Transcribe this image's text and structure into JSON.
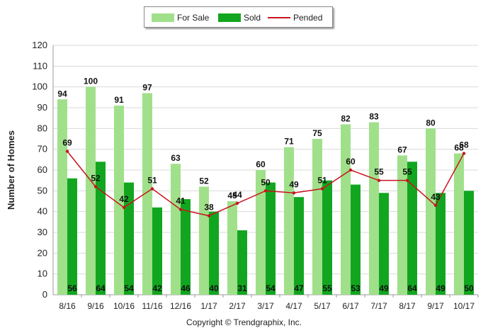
{
  "chart_data": {
    "type": "bar",
    "title": "",
    "xlabel": "",
    "ylabel": "Number of Homes",
    "ylim": [
      0,
      120
    ],
    "yticks": [
      0,
      10,
      20,
      30,
      40,
      50,
      60,
      70,
      80,
      90,
      100,
      110,
      120
    ],
    "grid": true,
    "legend_position": "top-center",
    "categories": [
      "8/16",
      "9/16",
      "10/16",
      "11/16",
      "12/16",
      "1/17",
      "2/17",
      "3/17",
      "4/17",
      "5/17",
      "6/17",
      "7/17",
      "8/17",
      "9/17",
      "10/17"
    ],
    "series": [
      {
        "name": "For Sale",
        "kind": "bar",
        "color": "#a0e08a",
        "values": [
          94,
          100,
          91,
          97,
          63,
          52,
          45,
          60,
          71,
          75,
          82,
          83,
          67,
          80,
          68
        ]
      },
      {
        "name": "Sold",
        "kind": "bar",
        "color": "#12a620",
        "values": [
          56,
          64,
          54,
          42,
          46,
          40,
          31,
          54,
          47,
          55,
          53,
          49,
          64,
          49,
          50
        ]
      },
      {
        "name": "Pended",
        "kind": "line",
        "color": "#c8141e",
        "values": [
          69,
          52,
          42,
          51,
          41,
          38,
          44,
          50,
          49,
          51,
          60,
          55,
          55,
          43,
          68
        ]
      }
    ]
  },
  "legend": {
    "for_sale": "For Sale",
    "sold": "Sold",
    "pended": "Pended"
  },
  "copyright": "Copyright © Trendgraphix, Inc."
}
